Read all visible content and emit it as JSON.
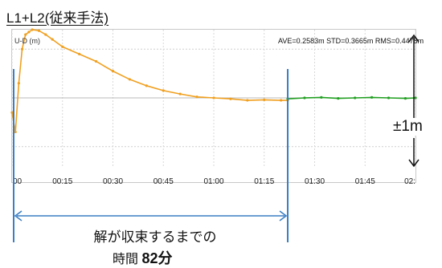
{
  "title": "L1+L2(従来手法)",
  "chart_data": {
    "type": "line",
    "ylabel": "U-D (m)",
    "stats_text": "AVE=0.2583m STD=0.3665m RMS=0.4478m",
    "x_ticks": [
      "00",
      "00:15",
      "00:30",
      "00:45",
      "01:00",
      "01:15",
      "01:30",
      "01:45",
      "02:"
    ],
    "xlim": [
      0,
      120
    ],
    "ylim": [
      -1.4,
      1.4
    ],
    "series": [
      {
        "color": "#f0a020",
        "x": [
          0,
          1,
          2,
          3,
          4,
          5,
          6,
          8,
          10,
          12,
          15,
          20,
          25,
          30,
          35,
          40,
          45,
          50,
          55,
          60,
          65,
          70,
          75,
          80,
          82
        ],
        "y": [
          -0.3,
          -0.7,
          0.3,
          1.0,
          1.3,
          1.35,
          1.4,
          1.38,
          1.3,
          1.2,
          1.05,
          0.9,
          0.75,
          0.55,
          0.38,
          0.25,
          0.15,
          0.08,
          0.02,
          0.0,
          -0.02,
          -0.05,
          -0.04,
          -0.05,
          -0.05
        ]
      },
      {
        "color": "#22a022",
        "x": [
          82,
          87,
          92,
          97,
          102,
          107,
          112,
          117,
          120
        ],
        "y": [
          -0.02,
          0.0,
          0.01,
          -0.01,
          0.0,
          0.01,
          0.0,
          -0.01,
          0.0
        ]
      }
    ],
    "guide_lines_x": [
      0,
      82
    ],
    "zero_line": 0
  },
  "pm_label": "±1m",
  "annotation": {
    "line1": "解が収束するまでの",
    "line2_prefix": "時間",
    "line2_value": "82分"
  }
}
